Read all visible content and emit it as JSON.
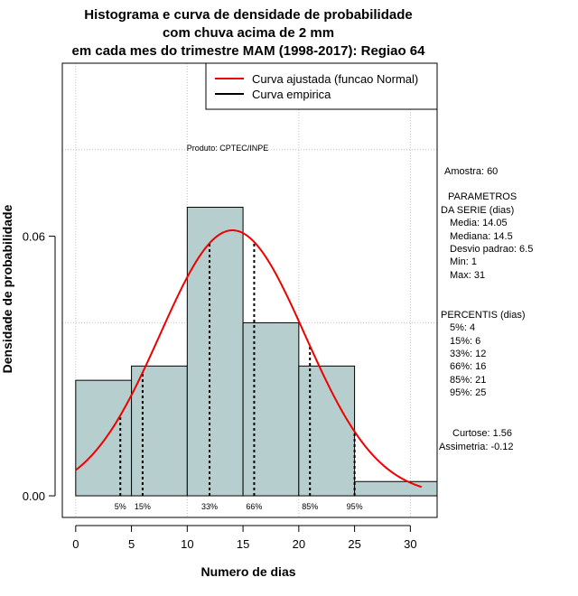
{
  "chart_data": {
    "type": "histogram",
    "title_lines": [
      "Histograma e curva de densidade de probabilidade",
      "com chuva acima de 2 mm",
      "em cada mes do trimestre MAM (1998-2017): Regiao 64"
    ],
    "xlabel": "Numero de dias",
    "ylabel": "Densidade de probabilidade",
    "xlim": [
      -1.2,
      32.4
    ],
    "ylim": [
      -0.005,
      0.1
    ],
    "x_ticks": [
      "0",
      "5",
      "10",
      "15",
      "20",
      "25",
      "30"
    ],
    "x_tick_values": [
      0,
      5,
      10,
      15,
      20,
      25,
      30
    ],
    "y_ticks": [
      "0.00",
      "0.06"
    ],
    "y_tick_values": [
      0,
      0.06
    ],
    "grid_x": [
      0,
      10,
      20,
      30
    ],
    "grid_y": [
      0.04,
      0.08
    ],
    "bins": [
      {
        "start": 0,
        "end": 5,
        "density": 0.0267
      },
      {
        "start": 5,
        "end": 10,
        "density": 0.03
      },
      {
        "start": 10,
        "end": 15,
        "density": 0.0667
      },
      {
        "start": 15,
        "end": 20,
        "density": 0.04
      },
      {
        "start": 20,
        "end": 25,
        "density": 0.03
      },
      {
        "start": 25,
        "end": 32.4,
        "density": 0.0033
      }
    ],
    "normal_curve": {
      "mean": 14.05,
      "sd": 6.5,
      "from": 0,
      "to": 31
    },
    "percentile_lines": [
      {
        "label": "5%",
        "x": 4
      },
      {
        "label": "15%",
        "x": 6
      },
      {
        "label": "33%",
        "x": 12
      },
      {
        "label": "66%",
        "x": 16
      },
      {
        "label": "85%",
        "x": 21
      },
      {
        "label": "95%",
        "x": 25
      }
    ],
    "legend": [
      {
        "label": "Curva ajustada (funcao Normal)",
        "color": "#ee0000"
      },
      {
        "label": "Curva empirica",
        "color": "#000000"
      }
    ],
    "credit": "Produto: CPTEC/INPE",
    "bar_color": "#b7cece",
    "curve_color": "#ee0000",
    "grid_color": "#c0c0c0"
  },
  "stats": {
    "sample": "Amostra: 60",
    "params_heading": [
      "PARAMETROS",
      "DA SERIE (dias)"
    ],
    "params": [
      "Media: 14.05",
      "Mediana: 14.5",
      "Desvio padrao: 6.5",
      "Min: 1",
      "Max: 31"
    ],
    "percentiles_heading": "PERCENTIS (dias)",
    "percentiles": [
      "5%: 4",
      "15%: 6",
      "33%: 12",
      "66%: 16",
      "85%: 21",
      "95%: 25"
    ],
    "kurtosis": "Curtose: 1.56",
    "skewness": "Assimetria: -0.12"
  }
}
